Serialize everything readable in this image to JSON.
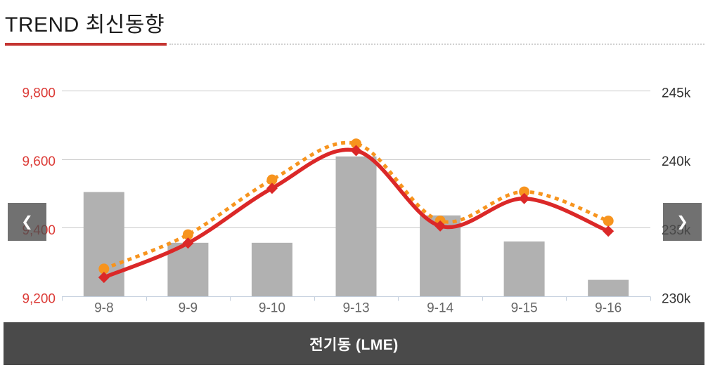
{
  "header": {
    "title": "TREND 최신동향"
  },
  "carousel": {
    "prev_icon": "❮",
    "next_icon": "❯",
    "slide_title": "전기동 (LME)"
  },
  "colors": {
    "title_text": "#1b1b1b",
    "title_underline": "#c43431",
    "divider_dotted": "#d0d0d0",
    "bar_fill": "#b1b1b1",
    "solid_line": "#db2828",
    "dotted_line": "#f7941e",
    "grid_line": "#c9c9c9",
    "axis_line": "#c5d0de",
    "y_left_label": "#dc3b37",
    "y_right_label": "#333333",
    "x_label": "#666666",
    "nav_button_bg": "#4d4d4d",
    "nav_chevron": "#ffffff",
    "footer_bg": "#4a4a4a",
    "footer_text": "#ffffff"
  },
  "chart_data": {
    "type": "combo",
    "categories": [
      "9-8",
      "9-9",
      "9-10",
      "9-13",
      "9-14",
      "9-15",
      "9-16"
    ],
    "series": [
      {
        "name": "gray-bars",
        "type": "bar",
        "axis": "right",
        "color": "#b1b1b1",
        "values": [
          237.6,
          233.9,
          233.9,
          240.2,
          235.9,
          234.0,
          231.2
        ]
      },
      {
        "name": "orange-dotted-spline",
        "type": "spline",
        "axis": "left",
        "line_style": "dotted",
        "marker": "circle",
        "color": "#f7941e",
        "values": [
          9280,
          9380,
          9540,
          9645,
          9420,
          9505,
          9420
        ]
      },
      {
        "name": "red-solid-spline",
        "type": "spline",
        "axis": "left",
        "line_style": "solid",
        "marker": "diamond",
        "color": "#db2828",
        "values": [
          9255,
          9355,
          9515,
          9625,
          9405,
          9485,
          9390
        ]
      }
    ],
    "y_left": {
      "min": 9200,
      "max": 9800,
      "tick_interval": 200,
      "tick_labels": [
        "9,200",
        "9,400",
        "9,600",
        "9,800"
      ]
    },
    "y_right": {
      "min": 230,
      "max": 245,
      "tick_interval": 5,
      "tick_labels": [
        "230k",
        "235k",
        "240k",
        "245k"
      ]
    },
    "grid": true,
    "legend": false
  }
}
